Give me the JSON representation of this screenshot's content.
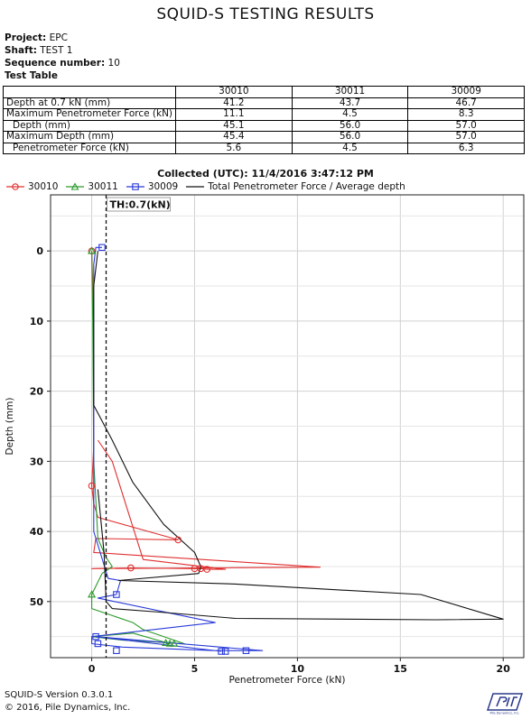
{
  "report": {
    "title": "SQUID-S TESTING RESULTS",
    "project_label": "Project:",
    "project_value": "EPC",
    "shaft_label": "Shaft:",
    "shaft_value": "TEST 1",
    "sequence_label": "Sequence number:",
    "sequence_value": "10",
    "table_label": "Test Table"
  },
  "table": {
    "columns": [
      "30010",
      "30011",
      "30009"
    ],
    "rows": [
      {
        "label": "Depth at 0.7 kN (mm)",
        "values": [
          "41.2",
          "43.7",
          "46.7"
        ]
      },
      {
        "label": "Maximum Penetrometer Force (kN)",
        "values": [
          "11.1",
          "4.5",
          "8.3"
        ]
      },
      {
        "label": "  Depth (mm)",
        "values": [
          "45.1",
          "56.0",
          "57.0"
        ]
      },
      {
        "label": "Maximum Depth (mm)",
        "values": [
          "45.4",
          "56.0",
          "57.0"
        ]
      },
      {
        "label": "  Penetrometer Force (kN)",
        "values": [
          "5.6",
          "4.5",
          "6.3"
        ]
      }
    ]
  },
  "collected": "Collected (UTC): 11/4/2016 3:47:12 PM",
  "footer": {
    "version": "SQUID-S Version 0.3.0.1",
    "copyright": "© 2016, Pile Dynamics, Inc."
  },
  "chart_data": {
    "type": "line",
    "xlabel": "Penetrometer Force (kN)",
    "ylabel": "Depth (mm)",
    "xlim": [
      -2,
      21
    ],
    "ylim": [
      58,
      -8
    ],
    "y_inverted": true,
    "xticks": [
      0,
      5,
      10,
      15,
      20
    ],
    "yticks": [
      0,
      10,
      20,
      30,
      40,
      50
    ],
    "grid": true,
    "legend_position": "top",
    "threshold": {
      "label": "TH:0.7(kN)",
      "x": 0.7
    },
    "series": [
      {
        "name": "30010",
        "color": "#e03030",
        "marker": "circle",
        "points": [
          [
            0,
            0
          ],
          [
            0.05,
            5
          ],
          [
            0.1,
            20
          ],
          [
            0.1,
            28
          ],
          [
            0,
            33.5
          ],
          [
            0.1,
            36
          ],
          [
            0.3,
            38
          ],
          [
            4.2,
            41.2
          ],
          [
            0.2,
            41
          ],
          [
            0.1,
            43
          ],
          [
            11.1,
            45.1
          ],
          [
            0,
            45.3
          ],
          [
            2,
            45.2
          ],
          [
            5,
            45.3
          ],
          [
            5.3,
            45.3
          ],
          [
            5.6,
            45.4
          ],
          [
            6.5,
            45.4
          ],
          [
            2.5,
            44
          ],
          [
            1,
            30
          ],
          [
            0.3,
            27
          ]
        ],
        "marker_points": [
          [
            0,
            0
          ],
          [
            0,
            33.5
          ],
          [
            4.2,
            41.2
          ],
          [
            1.9,
            45.2
          ],
          [
            5,
            45.3
          ],
          [
            5.3,
            45.3
          ],
          [
            5.6,
            45.4
          ]
        ]
      },
      {
        "name": "30011",
        "color": "#2a9a2a",
        "marker": "triangle",
        "points": [
          [
            0,
            0
          ],
          [
            0.05,
            10
          ],
          [
            0.1,
            30
          ],
          [
            0.3,
            41
          ],
          [
            0.7,
            43.7
          ],
          [
            1,
            45
          ],
          [
            0.5,
            46
          ],
          [
            0,
            49
          ],
          [
            0,
            51
          ],
          [
            2,
            53
          ],
          [
            2.5,
            54
          ],
          [
            4.5,
            56
          ],
          [
            1.5,
            55.5
          ],
          [
            0,
            55
          ],
          [
            2,
            54.5
          ],
          [
            3.8,
            56
          ],
          [
            3.6,
            56
          ]
        ],
        "marker_points": [
          [
            0,
            0
          ],
          [
            0,
            49
          ],
          [
            3.6,
            55.9
          ],
          [
            3.8,
            56
          ],
          [
            4,
            56
          ]
        ]
      },
      {
        "name": "30009",
        "color": "#2a3ad8",
        "marker": "square",
        "points": [
          [
            0.5,
            -0.5
          ],
          [
            0.2,
            -0.5
          ],
          [
            0.1,
            2
          ],
          [
            0.1,
            20
          ],
          [
            0.1,
            40
          ],
          [
            0.8,
            46.7
          ],
          [
            1.4,
            47
          ],
          [
            1.2,
            49
          ],
          [
            0.3,
            49.5
          ],
          [
            6,
            53
          ],
          [
            0,
            55
          ],
          [
            0,
            56
          ],
          [
            1.5,
            56.5
          ],
          [
            6,
            57
          ],
          [
            7.6,
            57
          ],
          [
            8.3,
            57
          ],
          [
            0.2,
            55
          ],
          [
            6.3,
            57.1
          ]
        ],
        "marker_points": [
          [
            0.5,
            -0.5
          ],
          [
            1.2,
            49
          ],
          [
            0.2,
            55
          ],
          [
            0.3,
            56
          ],
          [
            1.2,
            57
          ],
          [
            6.3,
            57.1
          ],
          [
            6.5,
            57.1
          ],
          [
            7.5,
            57
          ]
        ]
      },
      {
        "name": "Total Penetrometer Force / Average depth",
        "color": "#111111",
        "marker": "none",
        "points": [
          [
            0.3,
            0
          ],
          [
            0.1,
            5
          ],
          [
            0.1,
            22
          ],
          [
            1,
            27
          ],
          [
            2,
            33
          ],
          [
            3.5,
            39
          ],
          [
            5,
            43
          ],
          [
            5.3,
            45
          ],
          [
            5.2,
            46
          ],
          [
            1.3,
            47
          ],
          [
            7,
            47.5
          ],
          [
            10,
            48
          ],
          [
            16,
            49
          ],
          [
            20,
            52.5
          ],
          [
            16.7,
            52.6
          ],
          [
            7,
            52.4
          ],
          [
            3.3,
            51.5
          ],
          [
            1,
            51
          ],
          [
            0.7,
            50
          ],
          [
            0.6,
            43
          ],
          [
            0.3,
            34
          ]
        ]
      }
    ]
  }
}
